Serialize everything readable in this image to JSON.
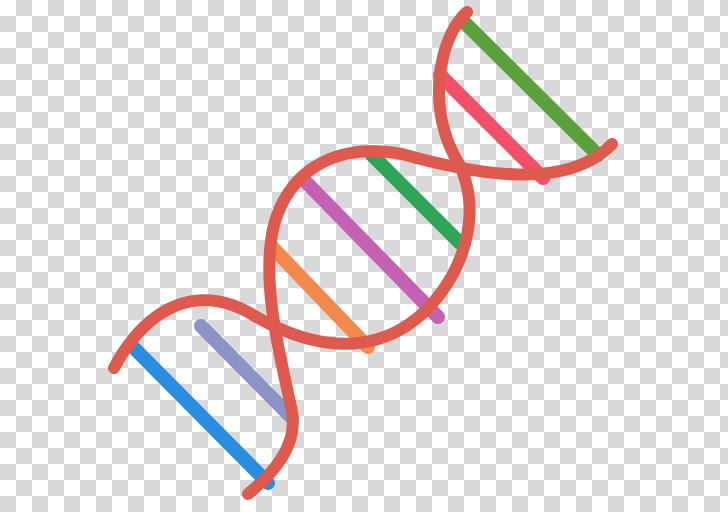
{
  "image": {
    "subject": "dna-double-helix-icon",
    "background": "transparency-checkerboard"
  },
  "colors": {
    "backbone": "#df5a4e",
    "checker_light": "#ffffff",
    "checker_dark": "#d9d9d9",
    "rungs": [
      "#5aa13c",
      "#f24f6b",
      "#2fa55a",
      "#c561b5",
      "#f3894a",
      "#8b93c8",
      "#2a8ee0"
    ]
  }
}
